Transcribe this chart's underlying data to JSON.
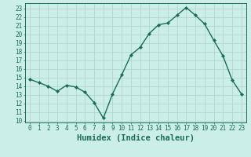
{
  "x": [
    0,
    1,
    2,
    3,
    4,
    5,
    6,
    7,
    8,
    9,
    10,
    11,
    12,
    13,
    14,
    15,
    16,
    17,
    18,
    19,
    20,
    21,
    22,
    23
  ],
  "y": [
    14.8,
    14.4,
    14.0,
    13.4,
    14.1,
    13.9,
    13.3,
    12.1,
    10.3,
    13.1,
    15.3,
    17.6,
    18.5,
    20.1,
    21.1,
    21.3,
    22.2,
    23.1,
    22.2,
    21.2,
    19.3,
    17.5,
    14.7,
    13.1
  ],
  "line_color": "#1a6b5a",
  "marker": "D",
  "marker_size": 2.2,
  "bg_color": "#cceee8",
  "grid_color": "#b0d8d0",
  "xlabel": "Humidex (Indice chaleur)",
  "ylim": [
    9.8,
    23.6
  ],
  "xlim": [
    -0.5,
    23.5
  ],
  "yticks": [
    10,
    11,
    12,
    13,
    14,
    15,
    16,
    17,
    18,
    19,
    20,
    21,
    22,
    23
  ],
  "xticks": [
    0,
    1,
    2,
    3,
    4,
    5,
    6,
    7,
    8,
    9,
    10,
    11,
    12,
    13,
    14,
    15,
    16,
    17,
    18,
    19,
    20,
    21,
    22,
    23
  ],
  "tick_label_fontsize": 5.5,
  "xlabel_fontsize": 7.5,
  "line_width": 1.0
}
